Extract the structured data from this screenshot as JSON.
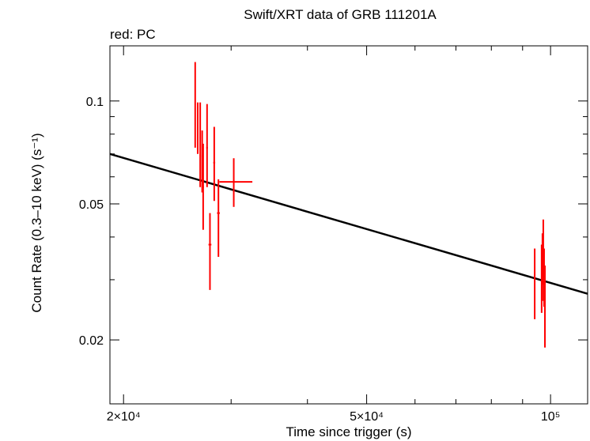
{
  "chart_data": {
    "type": "scatter",
    "title": "Swift/XRT data of GRB 111201A",
    "subtitle": "red: PC",
    "xlabel": "Time since trigger (s)",
    "ylabel": "Count Rate (0.3–10 keV) (s⁻¹)",
    "xscale": "log",
    "yscale": "log",
    "xlim": [
      19000,
      115000
    ],
    "ylim": [
      0.013,
      0.145
    ],
    "grid": false,
    "x_ticks": [
      {
        "value": 20000,
        "label": "2×10⁴"
      },
      {
        "value": 50000,
        "label": "5×10⁴"
      },
      {
        "value": 100000,
        "label": "10⁵"
      }
    ],
    "y_ticks": [
      {
        "value": 0.02,
        "label": "0.02"
      },
      {
        "value": 0.05,
        "label": "0.05"
      },
      {
        "value": 0.1,
        "label": "0.1"
      }
    ],
    "series": [
      {
        "color": "#ff0000",
        "points": [
          {
            "x": 26200,
            "y": 0.098,
            "xerr": [
              60,
              60
            ],
            "ylo": 0.073,
            "yhi": 0.13
          },
          {
            "x": 26450,
            "y": 0.095,
            "xerr": [
              60,
              60
            ],
            "ylo": 0.07,
            "yhi": 0.099
          },
          {
            "x": 26700,
            "y": 0.078,
            "xerr": [
              60,
              60
            ],
            "ylo": 0.056,
            "yhi": 0.099
          },
          {
            "x": 26900,
            "y": 0.069,
            "xerr": [
              60,
              60
            ],
            "ylo": 0.054,
            "yhi": 0.082
          },
          {
            "x": 27000,
            "y": 0.056,
            "xerr": [
              70,
              70
            ],
            "ylo": 0.042,
            "yhi": 0.075
          },
          {
            "x": 27400,
            "y": 0.073,
            "xerr": [
              80,
              80
            ],
            "ylo": 0.056,
            "yhi": 0.098
          },
          {
            "x": 27700,
            "y": 0.038,
            "xerr": [
              150,
              150
            ],
            "ylo": 0.028,
            "yhi": 0.047
          },
          {
            "x": 28150,
            "y": 0.066,
            "xerr": [
              100,
              100
            ],
            "ylo": 0.051,
            "yhi": 0.084
          },
          {
            "x": 28600,
            "y": 0.047,
            "xerr": [
              150,
              150
            ],
            "ylo": 0.035,
            "yhi": 0.059
          },
          {
            "x": 30300,
            "y": 0.058,
            "xerr": [
              1600,
              2200
            ],
            "ylo": 0.049,
            "yhi": 0.068
          },
          {
            "x": 94200,
            "y": 0.03,
            "xerr": [
              150,
              150
            ],
            "ylo": 0.023,
            "yhi": 0.037
          },
          {
            "x": 96700,
            "y": 0.031,
            "xerr": [
              150,
              150
            ],
            "ylo": 0.024,
            "yhi": 0.038
          },
          {
            "x": 97000,
            "y": 0.034,
            "xerr": [
              150,
              150
            ],
            "ylo": 0.026,
            "yhi": 0.041
          },
          {
            "x": 97300,
            "y": 0.036,
            "xerr": [
              150,
              150
            ],
            "ylo": 0.029,
            "yhi": 0.045
          },
          {
            "x": 97600,
            "y": 0.03,
            "xerr": [
              150,
              150
            ],
            "ylo": 0.025,
            "yhi": 0.037
          },
          {
            "x": 97900,
            "y": 0.026,
            "xerr": [
              150,
              150
            ],
            "ylo": 0.019,
            "yhi": 0.033
          }
        ]
      }
    ],
    "model_line": {
      "color": "#000000",
      "x": [
        19000,
        115000
      ],
      "y": [
        0.07,
        0.0273
      ]
    }
  }
}
